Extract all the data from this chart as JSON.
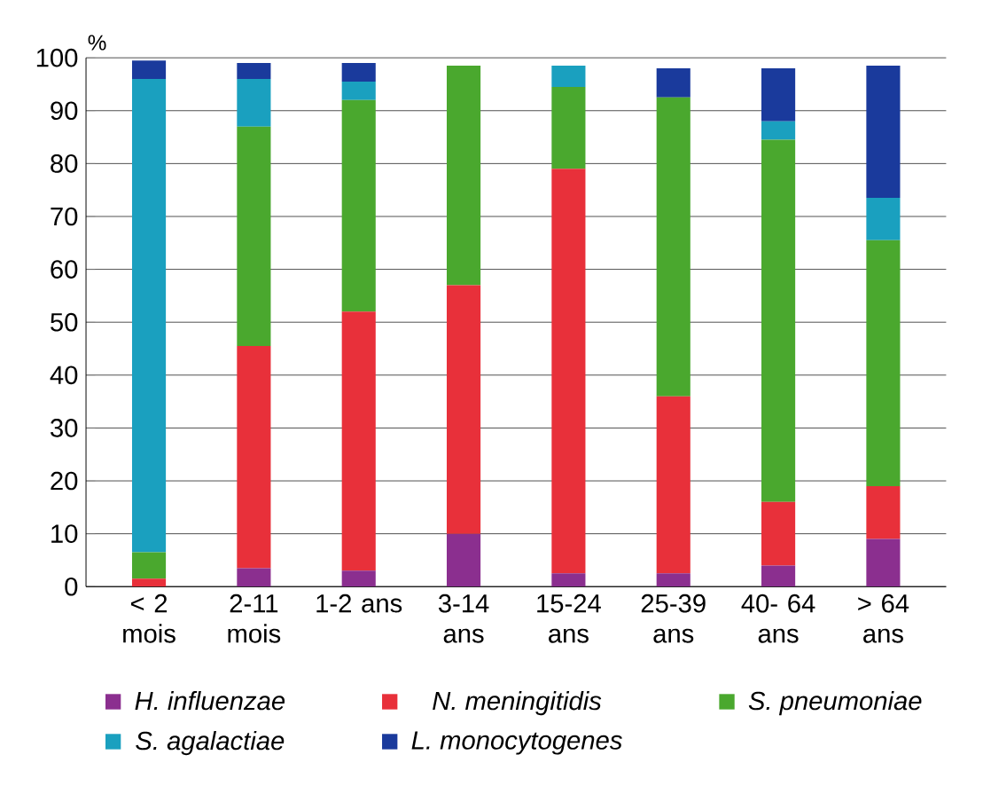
{
  "chart_data": {
    "type": "bar",
    "stacked": true,
    "ylabel": "%",
    "categories": [
      "< 2 mois",
      "2-11 mois",
      "1-2 ans",
      "3-14 ans",
      "15-24 ans",
      "25-39 ans",
      "40- 64 ans",
      "> 64 ans"
    ],
    "series": [
      {
        "name": "H. influenzae",
        "color": "#8b2f8f",
        "values": [
          0,
          3.5,
          3,
          10,
          2.5,
          2.5,
          4,
          9
        ]
      },
      {
        "name": "N. meningitidis",
        "color": "#e8303a",
        "values": [
          1.5,
          42,
          49,
          47,
          76.5,
          33.5,
          12,
          10
        ]
      },
      {
        "name": "S. pneumoniae",
        "color": "#4aa82e",
        "values": [
          5,
          41.5,
          40,
          41.5,
          15.5,
          56.5,
          68.5,
          46.5
        ]
      },
      {
        "name": "S. agalactiae",
        "color": "#1aa0bf",
        "values": [
          89.5,
          9,
          3.5,
          0,
          4,
          0,
          3.5,
          8
        ]
      },
      {
        "name": "L. monocytogenes",
        "color": "#1a3a9c",
        "values": [
          3.5,
          3,
          3.5,
          0,
          0,
          5.5,
          10,
          25
        ]
      }
    ],
    "ylim": [
      0,
      100
    ],
    "yticks": [
      0,
      10,
      20,
      30,
      40,
      50,
      60,
      70,
      80,
      90,
      100
    ],
    "grid": "y",
    "legend": "bottom"
  }
}
